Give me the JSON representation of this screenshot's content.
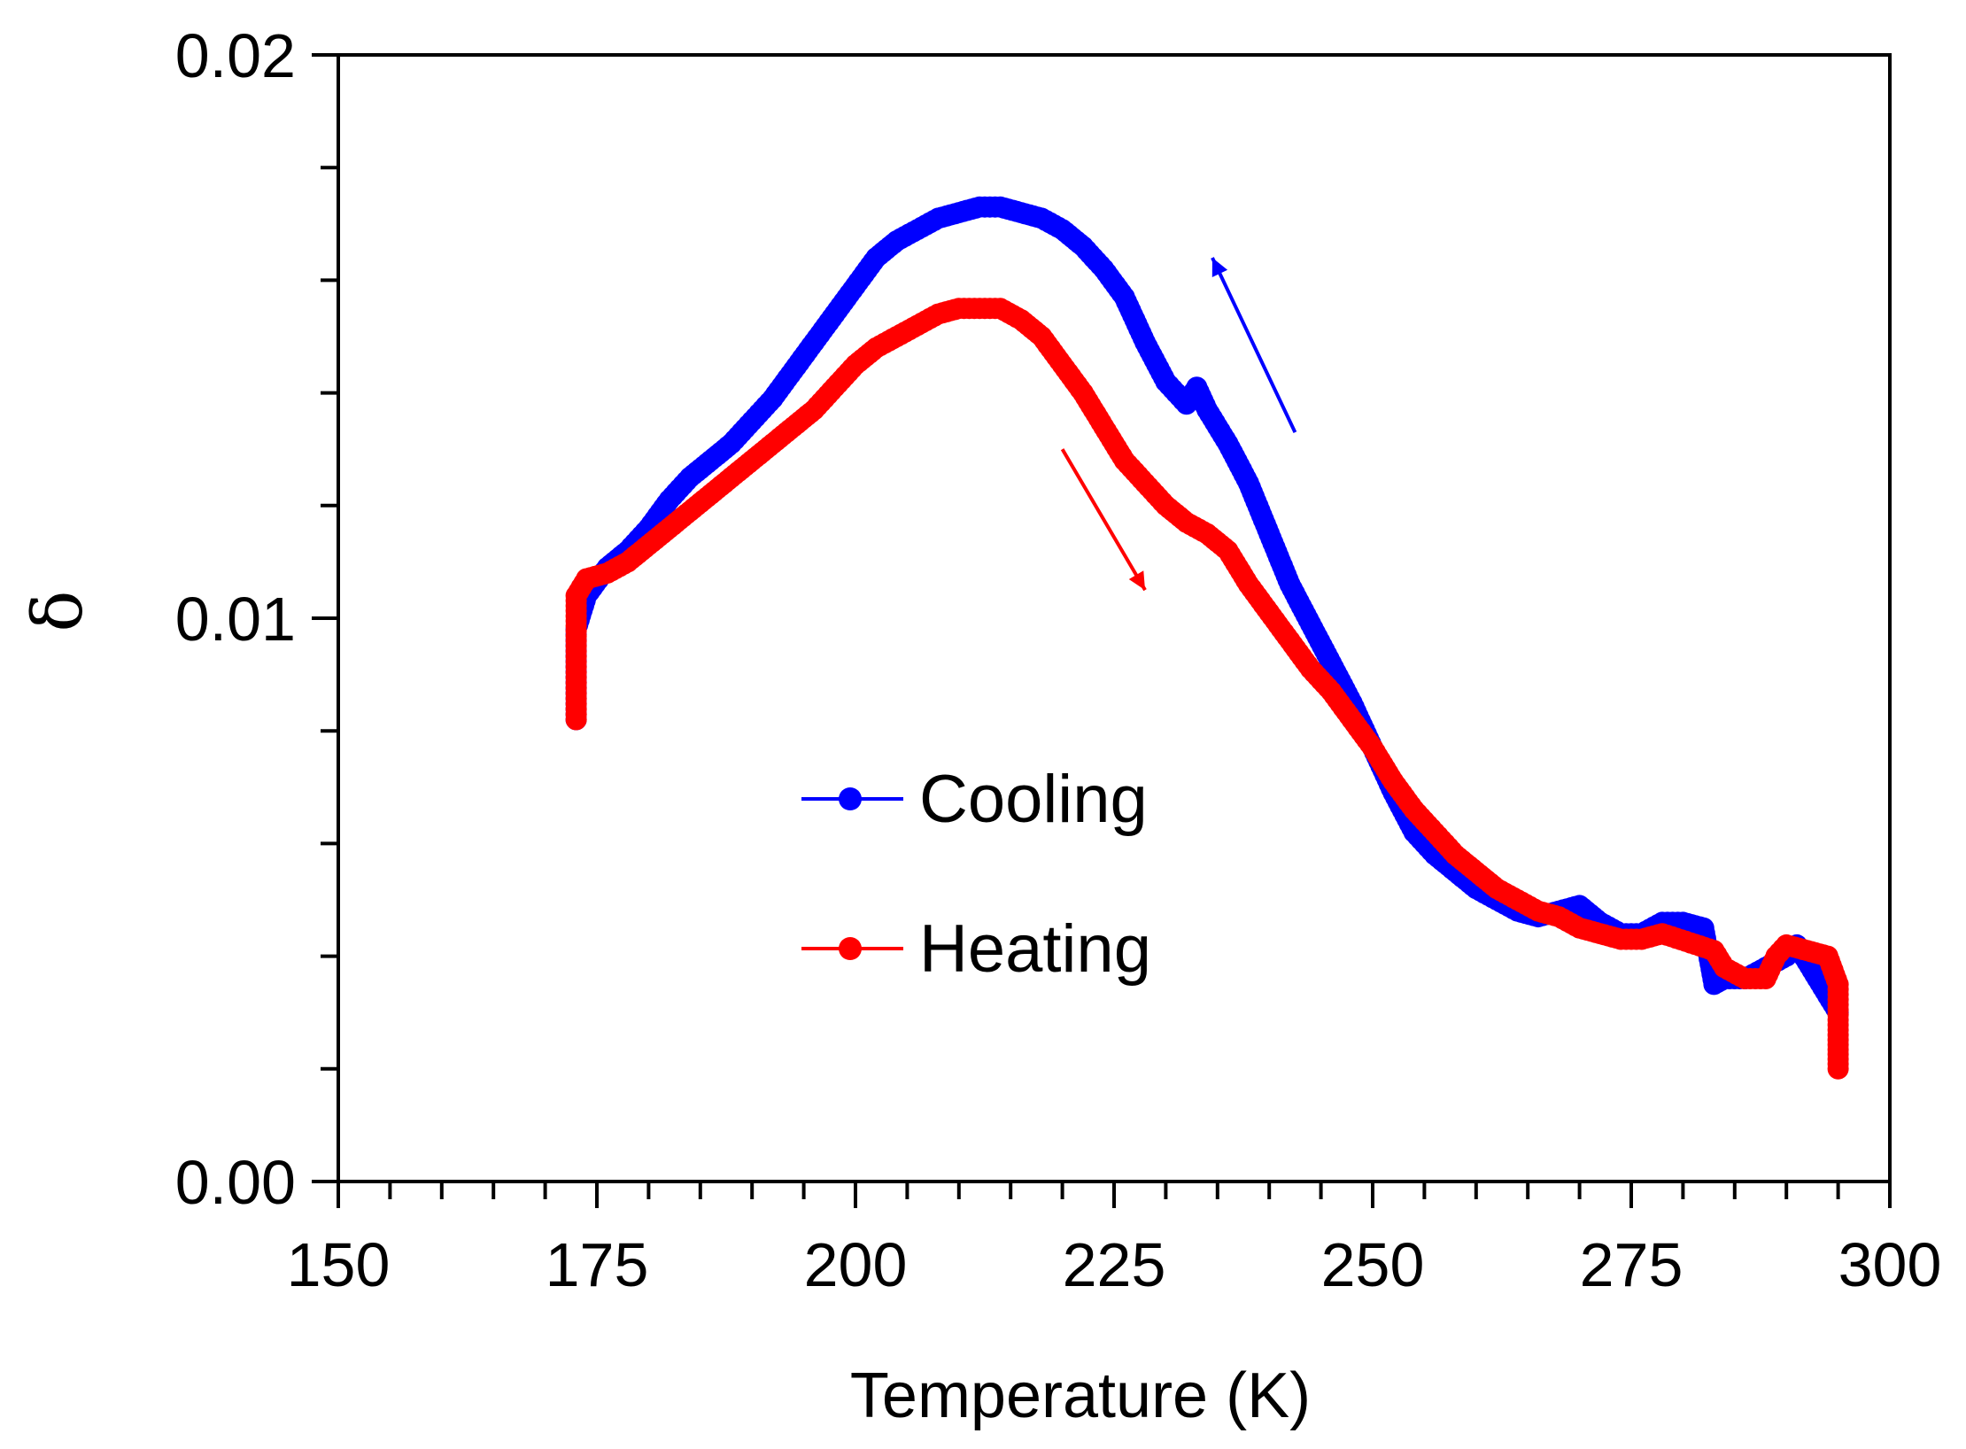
{
  "chart_data": {
    "type": "scatter",
    "title": "",
    "xlabel": "Temperature (K)",
    "ylabel": "δ",
    "xlim": [
      150,
      300
    ],
    "ylim": [
      0.0,
      0.02
    ],
    "x_ticks": [
      "150",
      "175",
      "200",
      "225",
      "250",
      "275",
      "300"
    ],
    "y_ticks": [
      "0.00",
      "0.01",
      "0.02"
    ],
    "legend_position": "center",
    "series": [
      {
        "name": "Cooling",
        "color": "#0000ff",
        "marker": "circle",
        "x": [
          173,
          173,
          174,
          176,
          178,
          180,
          182,
          184,
          186,
          188,
          190,
          192,
          194,
          196,
          198,
          200,
          202,
          204,
          206,
          208,
          210,
          212,
          214,
          216,
          218,
          220,
          222,
          224,
          226,
          228,
          230,
          232,
          233,
          234,
          236,
          238,
          240,
          242,
          244,
          246,
          248,
          250,
          252,
          254,
          256,
          258,
          260,
          262,
          264,
          266,
          268,
          270,
          272,
          274,
          276,
          278,
          280,
          282,
          283,
          284,
          286,
          288,
          290,
          291,
          292,
          293,
          294,
          295
        ],
        "y": [
          0.0082,
          0.0098,
          0.0104,
          0.0109,
          0.0112,
          0.0116,
          0.0121,
          0.0125,
          0.0128,
          0.0131,
          0.0135,
          0.0139,
          0.0144,
          0.0149,
          0.0154,
          0.0159,
          0.0164,
          0.0167,
          0.0169,
          0.0171,
          0.0172,
          0.0173,
          0.0173,
          0.0172,
          0.0171,
          0.0169,
          0.0166,
          0.0162,
          0.0157,
          0.0149,
          0.0142,
          0.0138,
          0.0141,
          0.0137,
          0.0131,
          0.0124,
          0.0115,
          0.0106,
          0.0099,
          0.0092,
          0.0085,
          0.0077,
          0.0069,
          0.0062,
          0.0058,
          0.0055,
          0.0052,
          0.005,
          0.0048,
          0.0047,
          0.0048,
          0.0049,
          0.0046,
          0.0044,
          0.0044,
          0.0046,
          0.0046,
          0.0045,
          0.0035,
          0.0036,
          0.0036,
          0.0038,
          0.004,
          0.0042,
          0.0039,
          0.0036,
          0.0033,
          0.003
        ]
      },
      {
        "name": "Heating",
        "color": "#ff0000",
        "marker": "circle",
        "x": [
          173,
          173,
          173,
          174,
          176,
          178,
          180,
          182,
          184,
          186,
          188,
          190,
          192,
          194,
          196,
          198,
          200,
          202,
          204,
          206,
          208,
          210,
          212,
          214,
          216,
          218,
          220,
          222,
          224,
          226,
          228,
          230,
          232,
          234,
          236,
          238,
          240,
          242,
          244,
          246,
          248,
          250,
          252,
          254,
          256,
          258,
          260,
          262,
          264,
          266,
          268,
          270,
          272,
          274,
          276,
          278,
          283,
          284,
          286,
          288,
          289,
          290,
          292,
          294,
          295,
          295,
          295
        ],
        "y": [
          0.0082,
          0.0095,
          0.0104,
          0.0107,
          0.0108,
          0.011,
          0.0113,
          0.0116,
          0.0119,
          0.0122,
          0.0125,
          0.0128,
          0.0131,
          0.0134,
          0.0137,
          0.0141,
          0.0145,
          0.0148,
          0.015,
          0.0152,
          0.0154,
          0.0155,
          0.0155,
          0.0155,
          0.0153,
          0.015,
          0.0145,
          0.014,
          0.0134,
          0.0128,
          0.0124,
          0.012,
          0.0117,
          0.0115,
          0.0112,
          0.0106,
          0.0101,
          0.0096,
          0.0091,
          0.0087,
          0.0082,
          0.0077,
          0.0071,
          0.0066,
          0.0062,
          0.0058,
          0.0055,
          0.0052,
          0.005,
          0.0048,
          0.0047,
          0.0045,
          0.0044,
          0.0043,
          0.0043,
          0.0044,
          0.0041,
          0.0038,
          0.0036,
          0.0036,
          0.004,
          0.0042,
          0.0041,
          0.004,
          0.0035,
          0.0026,
          0.002
        ]
      }
    ],
    "annotations": [
      {
        "type": "arrow",
        "color": "#0000ff",
        "from": [
          242.5,
          0.0133
        ],
        "to": [
          234.5,
          0.0164
        ],
        "meaning": "cooling direction"
      },
      {
        "type": "arrow",
        "color": "#ff0000",
        "from": [
          220,
          0.013
        ],
        "to": [
          228,
          0.0105
        ],
        "meaning": "heating direction"
      }
    ]
  }
}
